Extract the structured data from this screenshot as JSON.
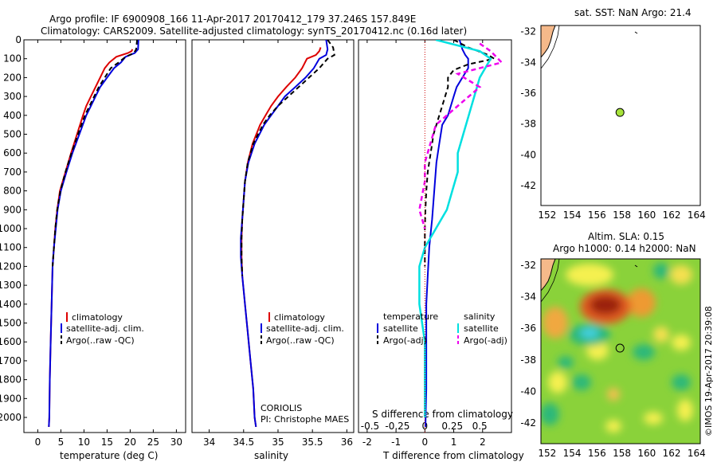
{
  "header": {
    "line1": "Argo profile: IF 6900908_166 11-Apr-2017 20170412_179 37.246S 157.849E",
    "line2": "Climatology: CARS2009. Satellite-adjusted climatology: synTS_20170412.nc (0.16d later)"
  },
  "colors": {
    "clim": "#dd0000",
    "sat": "#0000dd",
    "argo": "#000000",
    "sal_sat": "#00e0e0",
    "sal_argo": "#ee00ee",
    "land": "#f5b98a"
  },
  "chart_data": [
    {
      "type": "line",
      "xlabel": "temperature (deg C)",
      "ylabel": "",
      "xlim": [
        -3,
        32
      ],
      "ylim": [
        2080,
        0
      ],
      "xticks": [
        "0",
        "5",
        "10",
        "15",
        "20",
        "25",
        "30"
      ],
      "yticks": [
        "0",
        "100",
        "200",
        "300",
        "400",
        "500",
        "600",
        "700",
        "800",
        "900",
        "1000",
        "1100",
        "1200",
        "1300",
        "1400",
        "1500",
        "1600",
        "1700",
        "1800",
        "1900",
        "2000"
      ],
      "legend": [
        "climatology",
        "satellite-adj. clim.",
        "Argo(..raw -QC)"
      ],
      "series": [
        {
          "name": "climatology",
          "x": [
            20.5,
            20.3,
            19.5,
            17.0,
            15.5,
            14.5,
            13.5,
            12.5,
            11.5,
            10.5,
            9.8,
            8.5,
            7.2,
            6.0,
            4.8,
            4.2,
            3.8,
            3.5,
            3.2,
            3.0,
            2.8,
            2.6,
            2.5,
            2.4
          ],
          "y": [
            50,
            60,
            70,
            90,
            120,
            150,
            200,
            250,
            300,
            350,
            400,
            500,
            600,
            700,
            800,
            900,
            1000,
            1100,
            1200,
            1400,
            1600,
            1800,
            2000,
            2050
          ]
        },
        {
          "name": "satellite-adj. clim.",
          "x": [
            21.8,
            21.7,
            21.0,
            19.0,
            18.0,
            16.5,
            15.0,
            13.5,
            12.5,
            11.5,
            10.5,
            9.0,
            7.5,
            6.2,
            5.0,
            4.3,
            3.9,
            3.5,
            3.2,
            3.0,
            2.8,
            2.6,
            2.5,
            2.4
          ],
          "y": [
            0,
            50,
            70,
            90,
            120,
            150,
            200,
            250,
            300,
            350,
            400,
            500,
            600,
            700,
            800,
            900,
            1000,
            1100,
            1200,
            1400,
            1600,
            1800,
            2000,
            2050
          ]
        },
        {
          "name": "Argo(..raw -QC)",
          "x": [
            21.5,
            21.3,
            20.8,
            19.0,
            17.5,
            15.8,
            14.5,
            13.2,
            12.2,
            11.2,
            10.2,
            8.7,
            7.3,
            6.0,
            4.9,
            4.2,
            3.8,
            3.5,
            3.2
          ],
          "y": [
            0,
            50,
            70,
            90,
            120,
            150,
            200,
            250,
            300,
            350,
            400,
            500,
            600,
            700,
            800,
            900,
            1000,
            1100,
            1200
          ]
        }
      ]
    },
    {
      "type": "line",
      "xlabel": "salinity",
      "ylabel": "",
      "xlim": [
        33.75,
        36.1
      ],
      "ylim": [
        2080,
        0
      ],
      "xticks": [
        "34",
        "34.5",
        "35",
        "35.5",
        "36"
      ],
      "legend": [
        "climatology",
        "satellite-adj. clim.",
        "Argo(..raw -QC)"
      ],
      "annotations": [
        "CORIOLIS",
        "PI: Christophe MAES"
      ],
      "series": [
        {
          "name": "climatology",
          "x": [
            35.62,
            35.6,
            35.55,
            35.42,
            35.35,
            35.25,
            35.12,
            35.0,
            34.9,
            34.82,
            34.74,
            34.63,
            34.56,
            34.52,
            34.5,
            34.48,
            34.47,
            34.47,
            34.48,
            34.52,
            34.56,
            34.6,
            34.64,
            34.66,
            34.68
          ],
          "y": [
            40,
            60,
            80,
            100,
            150,
            200,
            250,
            300,
            350,
            400,
            450,
            550,
            650,
            750,
            850,
            950,
            1050,
            1150,
            1250,
            1400,
            1550,
            1700,
            1850,
            2000,
            2050
          ]
        },
        {
          "name": "satellite-adj. clim.",
          "x": [
            35.7,
            35.72,
            35.7,
            35.6,
            35.52,
            35.4,
            35.25,
            35.1,
            35.0,
            34.9,
            34.8,
            34.66,
            34.57,
            34.52,
            34.5,
            34.48,
            34.46,
            34.46,
            34.48,
            34.52,
            34.56,
            34.6,
            34.64,
            34.66,
            34.68
          ],
          "y": [
            0,
            50,
            80,
            100,
            150,
            200,
            250,
            300,
            350,
            400,
            450,
            550,
            650,
            750,
            850,
            950,
            1050,
            1150,
            1250,
            1400,
            1550,
            1700,
            1850,
            2000,
            2050
          ]
        },
        {
          "name": "Argo(..raw -QC)",
          "x": [
            35.72,
            35.8,
            35.82,
            35.72,
            35.6,
            35.45,
            35.3,
            35.15,
            35.0,
            34.88,
            34.78,
            34.64,
            34.56,
            34.52,
            34.5,
            34.48,
            34.47,
            34.47,
            34.48
          ],
          "y": [
            0,
            40,
            80,
            100,
            150,
            200,
            250,
            300,
            350,
            400,
            450,
            550,
            650,
            750,
            850,
            950,
            1050,
            1150,
            1250
          ]
        }
      ]
    },
    {
      "type": "line",
      "xlabel": "T difference from climatology",
      "xlabel_top": "S difference from climatology",
      "xlim": [
        -2.3,
        3.0
      ],
      "ylim": [
        2080,
        0
      ],
      "xticks": [
        "-2",
        "-1",
        "0",
        "1",
        "2"
      ],
      "xticks_top": [
        "-0.5",
        "-0.25",
        "0",
        "0.25",
        "0.5"
      ],
      "legend_groups": [
        {
          "title": "temperature",
          "items": [
            "satellite",
            "Argo(-adj)"
          ]
        },
        {
          "title": "salinity",
          "items": [
            "satellite",
            "Argo(-adj)"
          ]
        }
      ],
      "series": [
        {
          "name": "temperature satellite",
          "x": [
            1.2,
            1.3,
            1.4,
            1.5,
            1.5,
            1.3,
            1.1,
            1.0,
            0.9,
            0.8,
            0.6,
            0.5,
            0.4,
            0.35,
            0.3,
            0.25,
            0.15,
            0.1,
            0.05,
            0.05,
            0.05,
            0.05,
            0.02
          ],
          "y": [
            0,
            50,
            80,
            100,
            150,
            200,
            250,
            300,
            350,
            400,
            450,
            550,
            650,
            750,
            850,
            950,
            1100,
            1250,
            1400,
            1550,
            1700,
            1850,
            2050
          ]
        },
        {
          "name": "temperature Argo(-adj)",
          "x": [
            1.0,
            1.5,
            2.2,
            2.4,
            1.5,
            1.0,
            0.8,
            0.8,
            0.7,
            0.6,
            0.5,
            0.3,
            0.2,
            0.1,
            0.05,
            0.02,
            0.0,
            0.0,
            0.0
          ],
          "y": [
            0,
            40,
            80,
            100,
            130,
            160,
            200,
            250,
            300,
            350,
            400,
            500,
            600,
            700,
            800,
            900,
            1000,
            1100,
            1200
          ]
        },
        {
          "name": "salinity satellite",
          "x": [
            0.1,
            0.5,
            0.6,
            0.55,
            0.5,
            0.45,
            0.4,
            0.35,
            0.3,
            0.3,
            0.25,
            0.2,
            0.1,
            0.0,
            -0.05,
            -0.05,
            0.0,
            0.0
          ],
          "y": [
            0,
            60,
            100,
            150,
            200,
            300,
            400,
            500,
            600,
            700,
            800,
            900,
            1000,
            1100,
            1200,
            1400,
            1600,
            2000
          ]
        },
        {
          "name": "salinity Argo(-adj)",
          "x": [
            0.5,
            0.6,
            0.7,
            0.3,
            0.5,
            0.3,
            0.2,
            0.1,
            0.05,
            0.0,
            0.0,
            -0.05,
            0.0
          ],
          "y": [
            20,
            60,
            120,
            180,
            250,
            350,
            400,
            450,
            550,
            650,
            750,
            900,
            1000
          ]
        }
      ]
    },
    {
      "type": "scatter",
      "title": "sat. SST: NaN Argo: 21.4",
      "xlim": [
        151.5,
        164.3
      ],
      "ylim": [
        -43.3,
        -31.6
      ],
      "xticks": [
        "152",
        "154",
        "156",
        "158",
        "160",
        "162",
        "164"
      ],
      "yticks": [
        "-32",
        "-34",
        "-36",
        "-38",
        "-40",
        "-42"
      ],
      "x": [
        157.85
      ],
      "y": [
        -37.25
      ]
    },
    {
      "type": "heatmap",
      "title": "Altim. SLA: 0.15",
      "subtitle": "Argo h1000: 0.14 h2000: NaN",
      "xlim": [
        151.5,
        164.3
      ],
      "ylim": [
        -43.3,
        -31.6
      ],
      "xticks": [
        "152",
        "154",
        "156",
        "158",
        "160",
        "162",
        "164"
      ],
      "yticks": [
        "-32",
        "-34",
        "-36",
        "-38",
        "-40",
        "-42"
      ],
      "x": [
        157.85
      ],
      "y": [
        -37.25
      ],
      "credit": "©IMOS 19-Apr-2017 20:39:08"
    }
  ]
}
